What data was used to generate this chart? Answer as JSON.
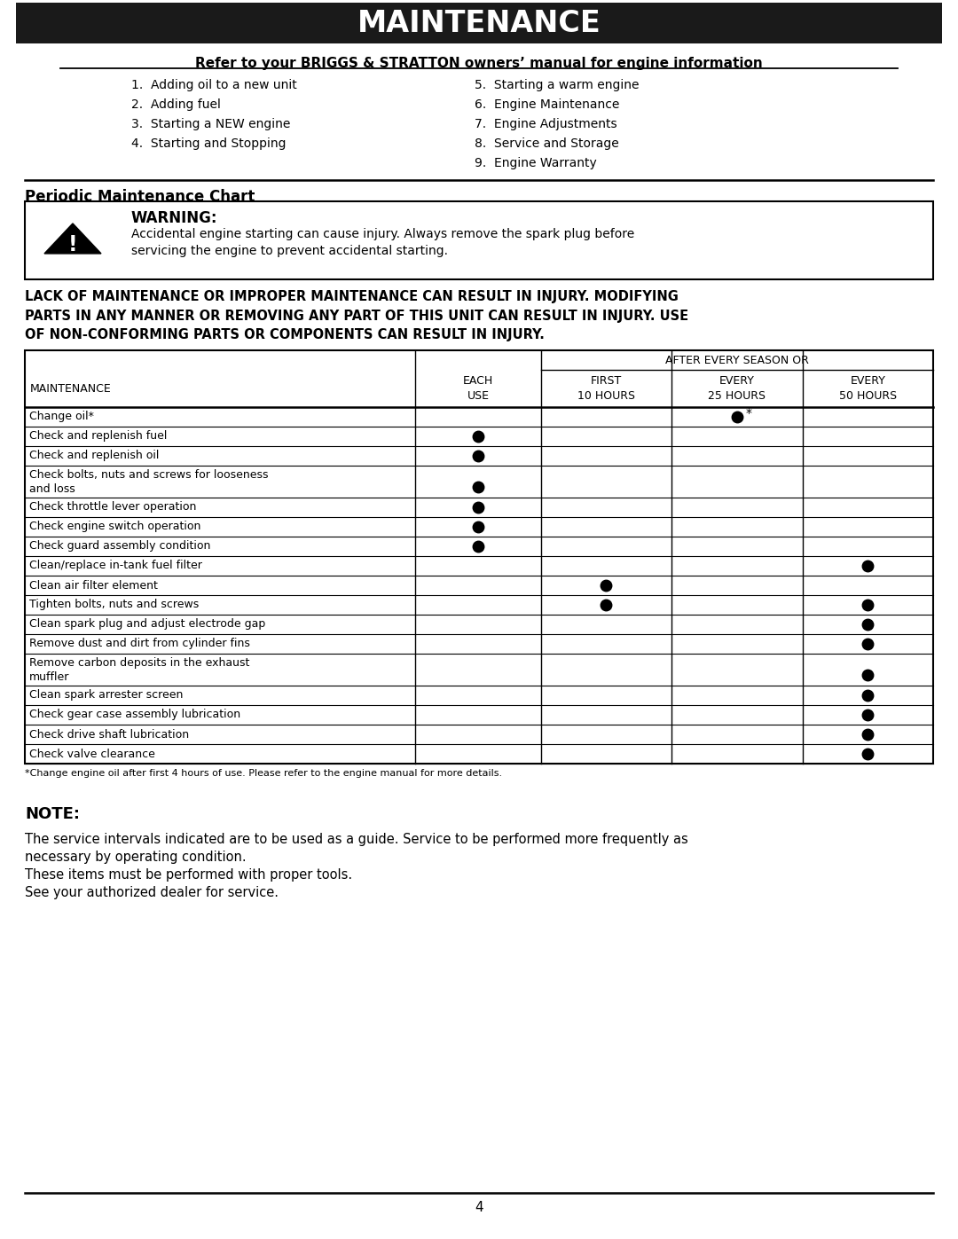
{
  "title": "MAINTENANCE",
  "subtitle": "Refer to your BRIGGS & STRATTON owners’ manual for engine information",
  "list_left": [
    "1.  Adding oil to a new unit",
    "2.  Adding fuel",
    "3.  Starting a NEW engine",
    "4.  Starting and Stopping"
  ],
  "list_right": [
    "5.  Starting a warm engine",
    "6.  Engine Maintenance",
    "7.  Engine Adjustments",
    "8.  Service and Storage",
    "9.  Engine Warranty"
  ],
  "section_title": "Periodic Maintenance Chart",
  "warning_title": "WARNING:",
  "warning_text": "Accidental engine starting can cause injury. Always remove the spark plug before\nservicing the engine to prevent accidental starting.",
  "bold_warning": "LACK OF MAINTENANCE OR IMPROPER MAINTENANCE CAN RESULT IN INJURY. MODIFYING\nPARTS IN ANY MANNER OR REMOVING ANY PART OF THIS UNIT CAN RESULT IN INJURY. USE\nOF NON-CONFORMING PARTS OR COMPONENTS CAN RESULT IN INJURY.",
  "table_rows": [
    {
      "label": "Change oil*",
      "label2": "",
      "each": false,
      "first10": false,
      "every25": true,
      "every25_star": true,
      "every50": false
    },
    {
      "label": "Check and replenish fuel",
      "label2": "",
      "each": true,
      "first10": false,
      "every25": false,
      "every25_star": false,
      "every50": false
    },
    {
      "label": "Check and replenish oil",
      "label2": "",
      "each": true,
      "first10": false,
      "every25": false,
      "every25_star": false,
      "every50": false
    },
    {
      "label": "Check bolts, nuts and screws for looseness",
      "label2": "and loss",
      "each": true,
      "first10": false,
      "every25": false,
      "every25_star": false,
      "every50": false
    },
    {
      "label": "Check throttle lever operation",
      "label2": "",
      "each": true,
      "first10": false,
      "every25": false,
      "every25_star": false,
      "every50": false
    },
    {
      "label": "Check engine switch operation",
      "label2": "",
      "each": true,
      "first10": false,
      "every25": false,
      "every25_star": false,
      "every50": false
    },
    {
      "label": "Check guard assembly condition",
      "label2": "",
      "each": true,
      "first10": false,
      "every25": false,
      "every25_star": false,
      "every50": false
    },
    {
      "label": "Clean/replace in-tank fuel filter",
      "label2": "",
      "each": false,
      "first10": false,
      "every25": false,
      "every25_star": false,
      "every50": true
    },
    {
      "label": "Clean air filter element",
      "label2": "",
      "each": false,
      "first10": true,
      "every25": false,
      "every25_star": false,
      "every50": false
    },
    {
      "label": "Tighten bolts, nuts and screws",
      "label2": "",
      "each": false,
      "first10": true,
      "every25": false,
      "every25_star": false,
      "every50": true
    },
    {
      "label": "Clean spark plug and adjust electrode gap",
      "label2": "",
      "each": false,
      "first10": false,
      "every25": false,
      "every25_star": false,
      "every50": true
    },
    {
      "label": "Remove dust and dirt from cylinder fins",
      "label2": "",
      "each": false,
      "first10": false,
      "every25": false,
      "every25_star": false,
      "every50": true
    },
    {
      "label": "Remove carbon deposits in the exhaust",
      "label2": "muffler",
      "each": false,
      "first10": false,
      "every25": false,
      "every25_star": false,
      "every50": true
    },
    {
      "label": "Clean spark arrester screen",
      "label2": "",
      "each": false,
      "first10": false,
      "every25": false,
      "every25_star": false,
      "every50": true
    },
    {
      "label": "Check gear case assembly lubrication",
      "label2": "",
      "each": false,
      "first10": false,
      "every25": false,
      "every25_star": false,
      "every50": true
    },
    {
      "label": "Check drive shaft lubrication",
      "label2": "",
      "each": false,
      "first10": false,
      "every25": false,
      "every25_star": false,
      "every50": true
    },
    {
      "label": "Check valve clearance",
      "label2": "",
      "each": false,
      "first10": false,
      "every25": false,
      "every25_star": false,
      "every50": true
    }
  ],
  "footnote": "*Change engine oil after first 4 hours of use. Please refer to the engine manual for more details.",
  "note_title": "NOTE:",
  "note_lines": [
    "The service intervals indicated are to be used as a guide. Service to be performed more frequently as",
    "necessary by operating condition.",
    "These items must be performed with proper tools.",
    "See your authorized dealer for service."
  ],
  "page_number": "4",
  "bg_color": "#ffffff",
  "title_bg": "#1a1a1a",
  "title_fg": "#ffffff"
}
